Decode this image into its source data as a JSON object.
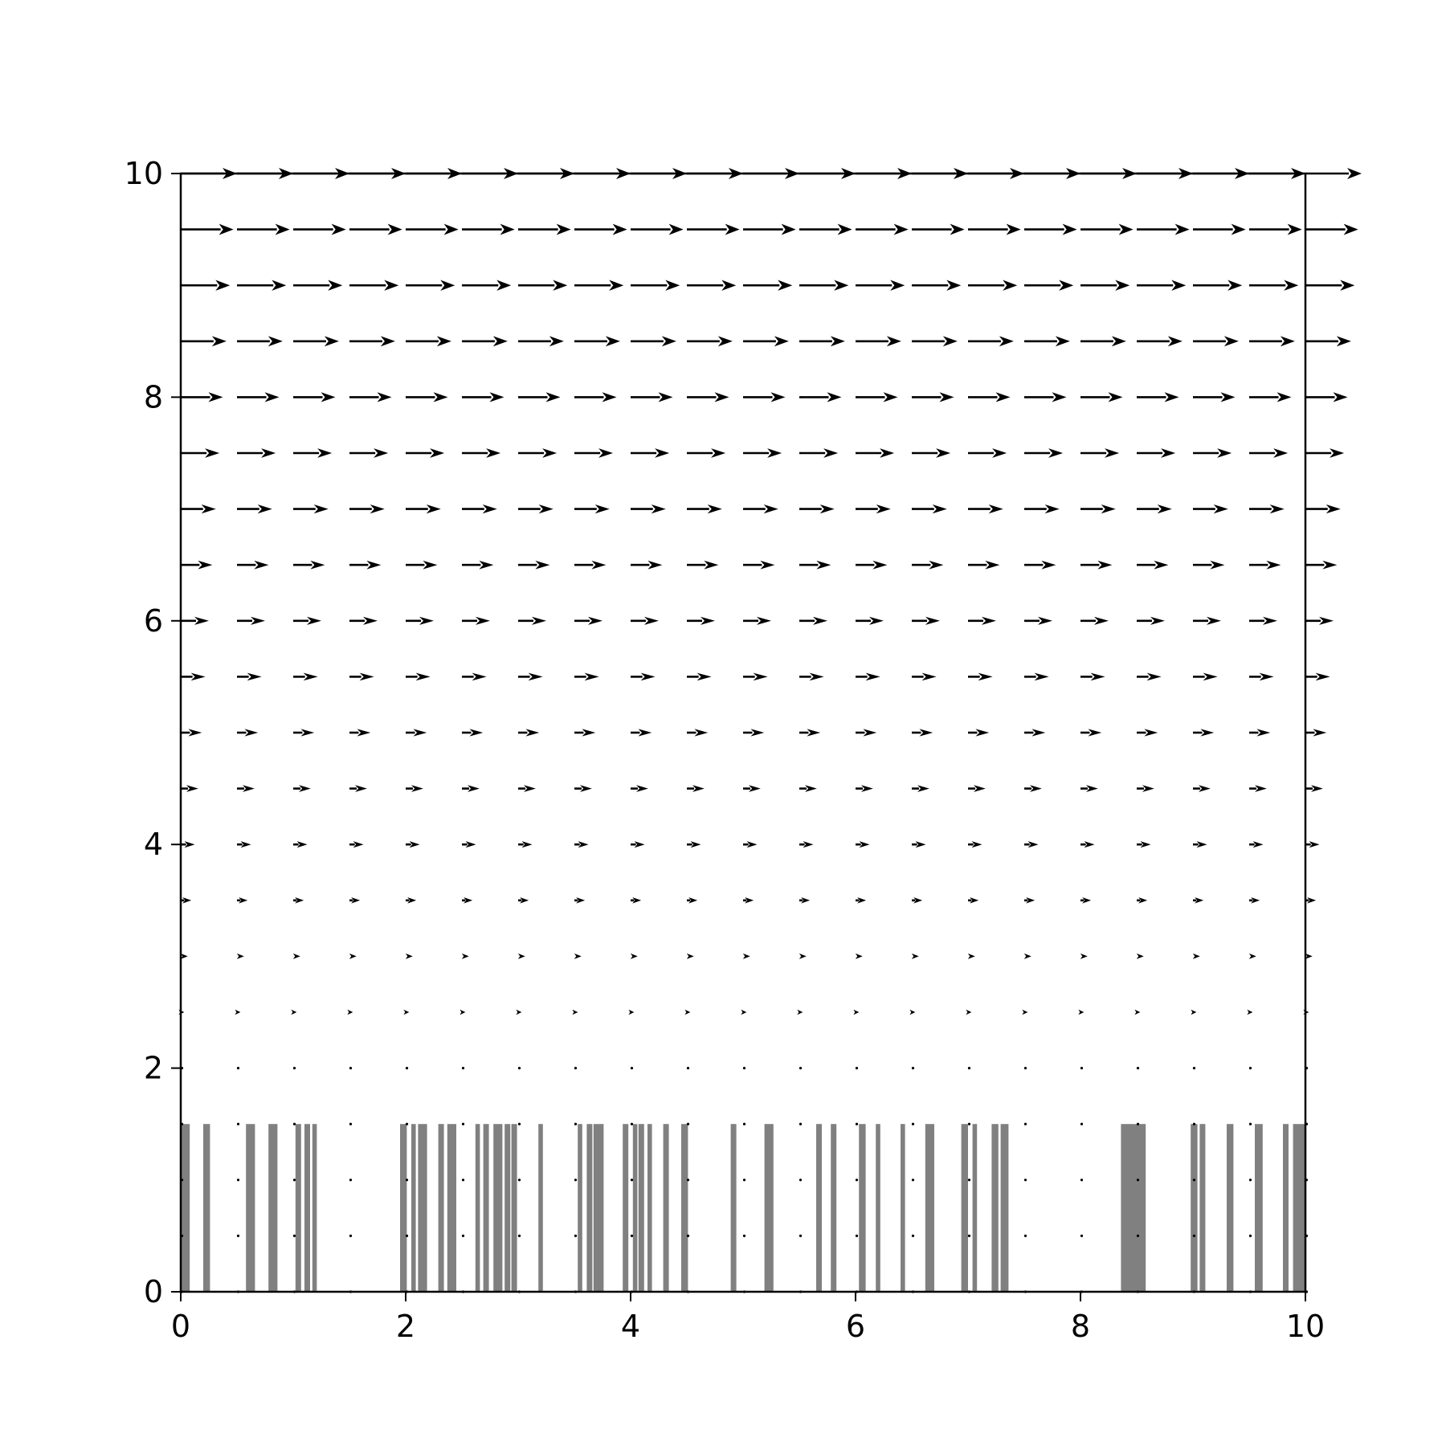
{
  "chart_data": {
    "type": "quiver",
    "title": "",
    "xlabel": "",
    "ylabel": "",
    "xlim": [
      0,
      10
    ],
    "ylim": [
      0,
      10
    ],
    "grid": false,
    "legend": "none",
    "x_ticks": [
      "0",
      "2",
      "4",
      "6",
      "8",
      "10"
    ],
    "y_ticks": [
      "0",
      "2",
      "4",
      "6",
      "8",
      "10"
    ],
    "arrow_color": "#000000",
    "bar_color": "#808080",
    "arrow_grid": {
      "x_start": 0,
      "x_step": 0.5,
      "x_count": 21,
      "y_start": 0,
      "y_step": 0.5,
      "y_count": 21,
      "direction": "+x",
      "length_rule": "proportional to (y - 2) for y > 2, zero otherwise",
      "length_at_y10": 0.5
    },
    "mask_bars": {
      "height": 1.5,
      "intervals": [
        [
          0.0,
          0.08
        ],
        [
          0.2,
          0.26
        ],
        [
          0.58,
          0.66
        ],
        [
          0.78,
          0.86
        ],
        [
          1.02,
          1.07
        ],
        [
          1.1,
          1.15
        ],
        [
          1.17,
          1.21
        ],
        [
          1.95,
          2.01
        ],
        [
          2.05,
          2.09
        ],
        [
          2.11,
          2.19
        ],
        [
          2.29,
          2.34
        ],
        [
          2.37,
          2.45
        ],
        [
          2.62,
          2.66
        ],
        [
          2.69,
          2.74
        ],
        [
          2.78,
          2.86
        ],
        [
          2.88,
          2.93
        ],
        [
          2.94,
          2.99
        ],
        [
          3.18,
          3.22
        ],
        [
          3.53,
          3.57
        ],
        [
          3.61,
          3.66
        ],
        [
          3.67,
          3.76
        ],
        [
          3.93,
          3.98
        ],
        [
          4.02,
          4.06
        ],
        [
          4.07,
          4.12
        ],
        [
          4.15,
          4.19
        ],
        [
          4.29,
          4.34
        ],
        [
          4.45,
          4.51
        ],
        [
          4.89,
          4.94
        ],
        [
          5.19,
          5.27
        ],
        [
          5.65,
          5.7
        ],
        [
          5.78,
          5.83
        ],
        [
          6.03,
          6.09
        ],
        [
          6.18,
          6.22
        ],
        [
          6.4,
          6.44
        ],
        [
          6.62,
          6.7
        ],
        [
          6.94,
          7.0
        ],
        [
          7.04,
          7.08
        ],
        [
          7.21,
          7.27
        ],
        [
          7.29,
          7.36
        ],
        [
          8.36,
          8.58
        ],
        [
          8.98,
          9.04
        ],
        [
          9.06,
          9.11
        ],
        [
          9.3,
          9.36
        ],
        [
          9.55,
          9.62
        ],
        [
          9.8,
          9.85
        ],
        [
          9.89,
          10.0
        ]
      ]
    }
  }
}
